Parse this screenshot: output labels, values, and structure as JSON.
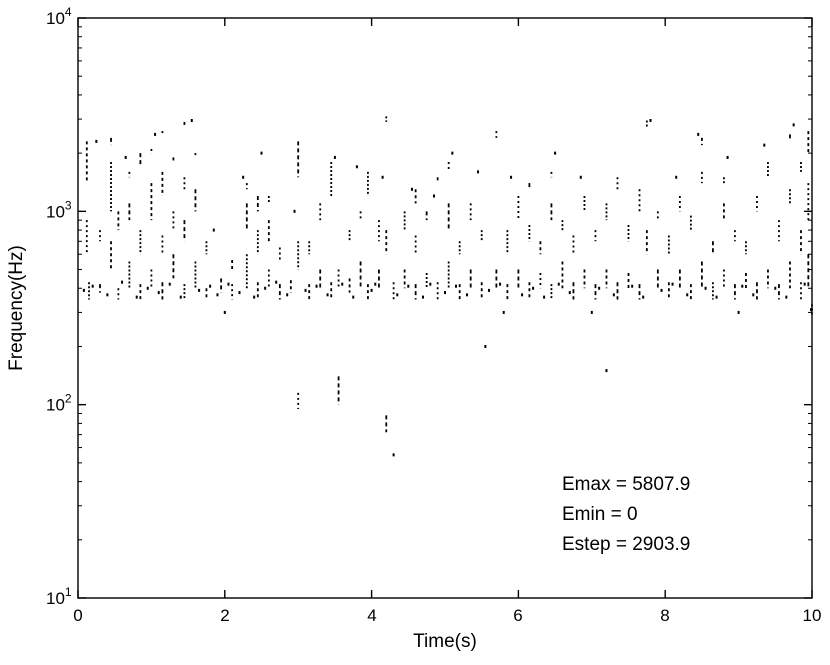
{
  "figure": {
    "background": "#ffffff",
    "foreground": "#000000"
  },
  "chart_data": {
    "type": "scatter",
    "title": "",
    "xlabel": "Time(s)",
    "ylabel": "Frequency(Hz)",
    "xlim": [
      0,
      10
    ],
    "ylim": [
      10,
      10000
    ],
    "yscale": "log",
    "grid": false,
    "legend": "none",
    "marker_color": "#000000",
    "xticks": [
      0,
      2,
      4,
      6,
      8,
      10
    ],
    "xtick_labels": [
      "0",
      "2",
      "4",
      "6",
      "8",
      "10"
    ],
    "yticks": [
      10,
      100,
      1000,
      10000
    ],
    "ytick_labels": [
      "10^1",
      "10^2",
      "10^3",
      "10^4"
    ],
    "annotations": [
      {
        "text": "Emax = 5807.9"
      },
      {
        "text": "Emin = 0"
      },
      {
        "text": "Estep = 2903.9"
      }
    ],
    "streaks": [
      [
        0.12,
        600,
        900
      ],
      [
        0.12,
        1400,
        2300
      ],
      [
        0.15,
        350,
        430
      ],
      [
        0.3,
        380,
        420
      ],
      [
        0.3,
        700,
        800
      ],
      [
        0.45,
        500,
        700
      ],
      [
        0.45,
        1000,
        1800
      ],
      [
        0.45,
        2200,
        2400
      ],
      [
        0.55,
        350,
        400
      ],
      [
        0.55,
        800,
        1000
      ],
      [
        0.7,
        400,
        550
      ],
      [
        0.7,
        900,
        1100
      ],
      [
        0.7,
        1500,
        1600
      ],
      [
        0.85,
        350,
        420
      ],
      [
        0.85,
        600,
        800
      ],
      [
        0.85,
        1700,
        2000
      ],
      [
        1.0,
        400,
        500
      ],
      [
        1.0,
        900,
        1400
      ],
      [
        1.0,
        2000,
        2100
      ],
      [
        1.15,
        350,
        430
      ],
      [
        1.15,
        600,
        750
      ],
      [
        1.15,
        1200,
        1600
      ],
      [
        1.15,
        2500,
        2600
      ],
      [
        1.3,
        450,
        600
      ],
      [
        1.3,
        800,
        1000
      ],
      [
        1.3,
        1800,
        1900
      ],
      [
        1.45,
        350,
        420
      ],
      [
        1.45,
        700,
        900
      ],
      [
        1.45,
        1300,
        1500
      ],
      [
        1.45,
        2700,
        2900
      ],
      [
        1.6,
        400,
        550
      ],
      [
        1.6,
        1000,
        1300
      ],
      [
        1.6,
        1900,
        2000
      ],
      [
        1.75,
        350,
        400
      ],
      [
        1.75,
        600,
        700
      ],
      [
        1.95,
        380,
        450
      ],
      [
        2.1,
        350,
        420
      ],
      [
        2.1,
        500,
        560
      ],
      [
        2.3,
        400,
        600
      ],
      [
        2.3,
        800,
        1100
      ],
      [
        2.3,
        1300,
        1400
      ],
      [
        2.45,
        350,
        430
      ],
      [
        2.45,
        600,
        800
      ],
      [
        2.45,
        1000,
        1200
      ],
      [
        2.6,
        400,
        500
      ],
      [
        2.6,
        700,
        900
      ],
      [
        2.6,
        1100,
        1200
      ],
      [
        2.75,
        350,
        420
      ],
      [
        2.75,
        550,
        650
      ],
      [
        2.9,
        380,
        440
      ],
      [
        3.0,
        500,
        700
      ],
      [
        3.0,
        1500,
        2300
      ],
      [
        3.0,
        95,
        115
      ],
      [
        3.15,
        350,
        420
      ],
      [
        3.15,
        600,
        700
      ],
      [
        3.3,
        400,
        500
      ],
      [
        3.3,
        900,
        1100
      ],
      [
        3.45,
        350,
        430
      ],
      [
        3.45,
        1200,
        1800
      ],
      [
        3.55,
        100,
        140
      ],
      [
        3.55,
        400,
        500
      ],
      [
        3.7,
        380,
        450
      ],
      [
        3.7,
        700,
        800
      ],
      [
        3.85,
        400,
        550
      ],
      [
        3.85,
        900,
        1000
      ],
      [
        3.95,
        350,
        420
      ],
      [
        3.95,
        1200,
        1600
      ],
      [
        4.1,
        400,
        500
      ],
      [
        4.1,
        700,
        900
      ],
      [
        4.2,
        600,
        800
      ],
      [
        4.2,
        2900,
        3100
      ],
      [
        4.2,
        72,
        88
      ],
      [
        4.3,
        350,
        430
      ],
      [
        4.45,
        400,
        500
      ],
      [
        4.45,
        800,
        1000
      ],
      [
        4.6,
        350,
        420
      ],
      [
        4.6,
        600,
        750
      ],
      [
        4.6,
        1100,
        1300
      ],
      [
        4.75,
        400,
        480
      ],
      [
        4.75,
        900,
        1000
      ],
      [
        4.9,
        350,
        430
      ],
      [
        4.9,
        1400,
        1500
      ],
      [
        5.05,
        400,
        550
      ],
      [
        5.05,
        800,
        1100
      ],
      [
        5.05,
        1600,
        1800
      ],
      [
        5.2,
        350,
        420
      ],
      [
        5.2,
        600,
        700
      ],
      [
        5.35,
        400,
        500
      ],
      [
        5.35,
        900,
        1100
      ],
      [
        5.5,
        350,
        430
      ],
      [
        5.5,
        700,
        800
      ],
      [
        5.7,
        400,
        500
      ],
      [
        5.7,
        2400,
        2600
      ],
      [
        5.85,
        350,
        420
      ],
      [
        5.85,
        600,
        800
      ],
      [
        6.0,
        400,
        500
      ],
      [
        6.0,
        900,
        1200
      ],
      [
        6.15,
        350,
        430
      ],
      [
        6.15,
        700,
        850
      ],
      [
        6.15,
        1300,
        1400
      ],
      [
        6.3,
        400,
        480
      ],
      [
        6.3,
        600,
        700
      ],
      [
        6.45,
        350,
        420
      ],
      [
        6.45,
        900,
        1100
      ],
      [
        6.45,
        1500,
        1600
      ],
      [
        6.6,
        400,
        550
      ],
      [
        6.6,
        800,
        900
      ],
      [
        6.75,
        350,
        430
      ],
      [
        6.75,
        600,
        750
      ],
      [
        6.9,
        400,
        500
      ],
      [
        6.9,
        1000,
        1200
      ],
      [
        7.05,
        350,
        420
      ],
      [
        7.05,
        700,
        800
      ],
      [
        7.2,
        400,
        500
      ],
      [
        7.2,
        900,
        1100
      ],
      [
        7.35,
        350,
        430
      ],
      [
        7.35,
        1300,
        1500
      ],
      [
        7.5,
        400,
        480
      ],
      [
        7.5,
        700,
        850
      ],
      [
        7.65,
        350,
        420
      ],
      [
        7.65,
        1000,
        1300
      ],
      [
        7.75,
        600,
        800
      ],
      [
        7.75,
        2700,
        2950
      ],
      [
        7.9,
        400,
        500
      ],
      [
        7.9,
        900,
        1000
      ],
      [
        8.05,
        350,
        430
      ],
      [
        8.05,
        600,
        750
      ],
      [
        8.2,
        400,
        500
      ],
      [
        8.2,
        1000,
        1200
      ],
      [
        8.35,
        350,
        420
      ],
      [
        8.35,
        800,
        950
      ],
      [
        8.5,
        400,
        550
      ],
      [
        8.5,
        1400,
        1600
      ],
      [
        8.5,
        2200,
        2400
      ],
      [
        8.65,
        350,
        430
      ],
      [
        8.65,
        600,
        700
      ],
      [
        8.8,
        400,
        500
      ],
      [
        8.8,
        900,
        1100
      ],
      [
        8.8,
        1400,
        1500
      ],
      [
        8.95,
        350,
        420
      ],
      [
        8.95,
        700,
        800
      ],
      [
        9.1,
        400,
        480
      ],
      [
        9.1,
        600,
        700
      ],
      [
        9.25,
        350,
        430
      ],
      [
        9.25,
        1000,
        1200
      ],
      [
        9.4,
        400,
        500
      ],
      [
        9.4,
        1500,
        1800
      ],
      [
        9.55,
        350,
        420
      ],
      [
        9.55,
        700,
        900
      ],
      [
        9.7,
        400,
        550
      ],
      [
        9.7,
        1100,
        1300
      ],
      [
        9.7,
        2300,
        2500
      ],
      [
        9.85,
        350,
        430
      ],
      [
        9.85,
        600,
        800
      ],
      [
        9.85,
        1600,
        1800
      ],
      [
        9.95,
        400,
        600
      ],
      [
        9.95,
        900,
        1400
      ],
      [
        9.95,
        2000,
        2600
      ],
      [
        10.0,
        290,
        330
      ]
    ],
    "dots": [
      [
        0.08,
        390
      ],
      [
        0.2,
        410
      ],
      [
        0.25,
        2300
      ],
      [
        0.4,
        370
      ],
      [
        0.6,
        430
      ],
      [
        0.65,
        1900
      ],
      [
        0.8,
        360
      ],
      [
        0.95,
        400
      ],
      [
        1.05,
        2500
      ],
      [
        1.1,
        380
      ],
      [
        1.25,
        420
      ],
      [
        1.4,
        360
      ],
      [
        1.55,
        2950
      ],
      [
        1.65,
        390
      ],
      [
        1.8,
        410
      ],
      [
        1.85,
        800
      ],
      [
        1.9,
        370
      ],
      [
        2.0,
        300
      ],
      [
        2.05,
        420
      ],
      [
        2.2,
        380
      ],
      [
        2.25,
        1500
      ],
      [
        2.4,
        360
      ],
      [
        2.5,
        2000
      ],
      [
        2.55,
        400
      ],
      [
        2.7,
        430
      ],
      [
        2.85,
        370
      ],
      [
        2.95,
        1000
      ],
      [
        3.1,
        390
      ],
      [
        3.25,
        410
      ],
      [
        3.4,
        370
      ],
      [
        3.5,
        1900
      ],
      [
        3.6,
        420
      ],
      [
        3.75,
        360
      ],
      [
        3.8,
        1700
      ],
      [
        4.0,
        390
      ],
      [
        4.05,
        420
      ],
      [
        4.15,
        1500
      ],
      [
        4.3,
        55
      ],
      [
        4.35,
        370
      ],
      [
        4.5,
        410
      ],
      [
        4.55,
        1300
      ],
      [
        4.7,
        360
      ],
      [
        4.8,
        420
      ],
      [
        4.85,
        1200
      ],
      [
        5.0,
        380
      ],
      [
        5.1,
        2000
      ],
      [
        5.15,
        410
      ],
      [
        5.3,
        370
      ],
      [
        5.45,
        1600
      ],
      [
        5.55,
        200
      ],
      [
        5.6,
        390
      ],
      [
        5.75,
        420
      ],
      [
        5.8,
        300
      ],
      [
        5.9,
        1500
      ],
      [
        6.05,
        370
      ],
      [
        6.2,
        400
      ],
      [
        6.35,
        360
      ],
      [
        6.5,
        2000
      ],
      [
        6.55,
        420
      ],
      [
        6.7,
        380
      ],
      [
        6.85,
        1500
      ],
      [
        7.0,
        300
      ],
      [
        7.1,
        400
      ],
      [
        7.2,
        150
      ],
      [
        7.3,
        370
      ],
      [
        7.55,
        410
      ],
      [
        7.7,
        360
      ],
      [
        7.8,
        2950
      ],
      [
        7.95,
        390
      ],
      [
        8.1,
        420
      ],
      [
        8.15,
        1500
      ],
      [
        8.3,
        370
      ],
      [
        8.45,
        2500
      ],
      [
        8.55,
        400
      ],
      [
        8.7,
        360
      ],
      [
        8.85,
        1900
      ],
      [
        9.0,
        300
      ],
      [
        9.05,
        410
      ],
      [
        9.2,
        370
      ],
      [
        9.35,
        2200
      ],
      [
        9.5,
        400
      ],
      [
        9.65,
        360
      ],
      [
        9.75,
        2800
      ],
      [
        9.9,
        420
      ],
      [
        10.0,
        310
      ]
    ]
  }
}
